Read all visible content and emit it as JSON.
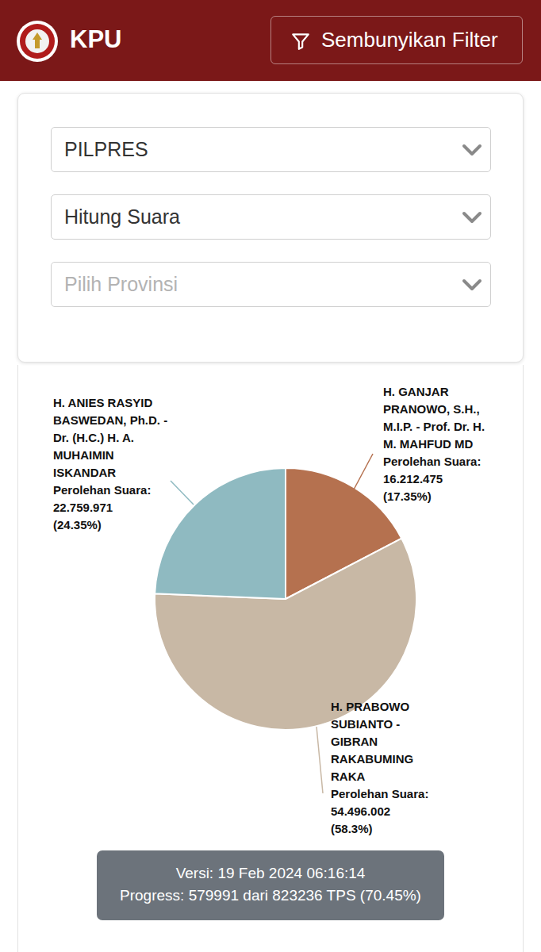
{
  "header": {
    "brand": "KPU",
    "button": "Sembunyikan Filter"
  },
  "filters": [
    {
      "text": "PILPRES",
      "placeholder": false
    },
    {
      "text": "Hitung Suara",
      "placeholder": false
    },
    {
      "text": "Pilih Provinsi",
      "placeholder": true
    }
  ],
  "chart_data": {
    "type": "pie",
    "categories": [
      "H. GANJAR PRANOWO, S.H., M.I.P. - Prof. Dr. H. M. MAHFUD MD",
      "H. PRABOWO SUBIANTO - GIBRAN RAKABUMING RAKA",
      "H. ANIES RASYID BASWEDAN, Ph.D. - Dr. (H.C.) H. A. MUHAIMIN ISKANDAR"
    ],
    "values": [
      17.35,
      58.3,
      24.35
    ],
    "value_labels": [
      "(17.35%)",
      "(58.3%)",
      "(24.35%)"
    ],
    "vote_caption": "Perolehan Suara:",
    "vote_labels": [
      "16.212.475",
      "54.496.002",
      "22.759.971"
    ],
    "colors": [
      "#b5714f",
      "#c8b8a5",
      "#8fbac1"
    ],
    "data_labels": true
  },
  "footer": {
    "version": "Versi: 19 Feb 2024 06:16:14",
    "progress": "Progress: 579991 dari 823236 TPS (70.45%)"
  }
}
